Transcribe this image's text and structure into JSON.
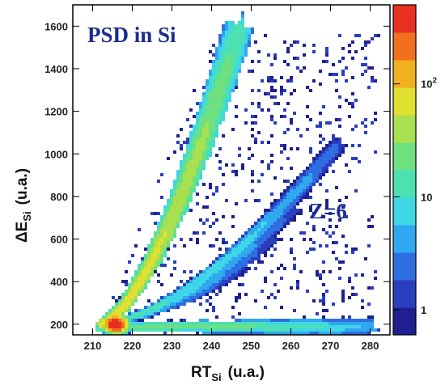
{
  "chart_data": {
    "type": "heatmap",
    "title": "PSD in Si",
    "annotations": [
      {
        "text": "Z=6",
        "x": 258,
        "y": 750
      }
    ],
    "xlabel": {
      "main": "RT",
      "sub": "Si",
      "unit": "(u.a.)"
    },
    "ylabel": {
      "prefix": "ΔE",
      "sub": "Si",
      "unit": "(u.a.)"
    },
    "xlim": [
      205,
      285
    ],
    "ylim": [
      150,
      1700
    ],
    "xticks": [
      210,
      220,
      230,
      240,
      250,
      260,
      270,
      280
    ],
    "yticks": [
      200,
      400,
      600,
      800,
      1000,
      1200,
      1400,
      1600
    ],
    "log_z": true,
    "z_range": [
      0.6,
      500
    ],
    "z_ticks": [
      {
        "value": 1,
        "label": "1"
      },
      {
        "value": 10,
        "label": "10"
      },
      {
        "value": 100,
        "label": "10",
        "sup": "2"
      }
    ],
    "colormap": [
      "#1f1f8f",
      "#2a3fc0",
      "#2f6ee0",
      "#2fa8f0",
      "#3fd6e6",
      "#4de0b0",
      "#6fe080",
      "#a8e050",
      "#e0e030",
      "#f0b020",
      "#f07020",
      "#e83020"
    ],
    "bands": [
      {
        "name": "main-ridge",
        "start": [
          212,
          200
        ],
        "end": [
          247,
          1600
        ],
        "spread": 6,
        "peak": 80
      },
      {
        "name": "band-1",
        "start": [
          214,
          210
        ],
        "end": [
          272,
          1050
        ],
        "spread": 4,
        "peak": 12
      },
      {
        "name": "band-2",
        "start": [
          214,
          210
        ],
        "end": [
          266,
          900
        ],
        "spread": 4,
        "peak": 10
      },
      {
        "name": "band-3",
        "start": [
          214,
          210
        ],
        "end": [
          261,
          740
        ],
        "spread": 3,
        "peak": 9
      },
      {
        "name": "band-4",
        "start": [
          214,
          210
        ],
        "end": [
          256,
          600
        ],
        "spread": 3,
        "peak": 7
      },
      {
        "name": "band-5",
        "start": [
          214,
          210
        ],
        "end": [
          249,
          470
        ],
        "spread": 3,
        "peak": 5
      },
      {
        "name": "low-band",
        "start": [
          212,
          190
        ],
        "end": [
          280,
          185
        ],
        "spread": 4,
        "peak": 30
      }
    ],
    "hotspot": {
      "x": 216,
      "y": 200,
      "peak": 500
    }
  }
}
